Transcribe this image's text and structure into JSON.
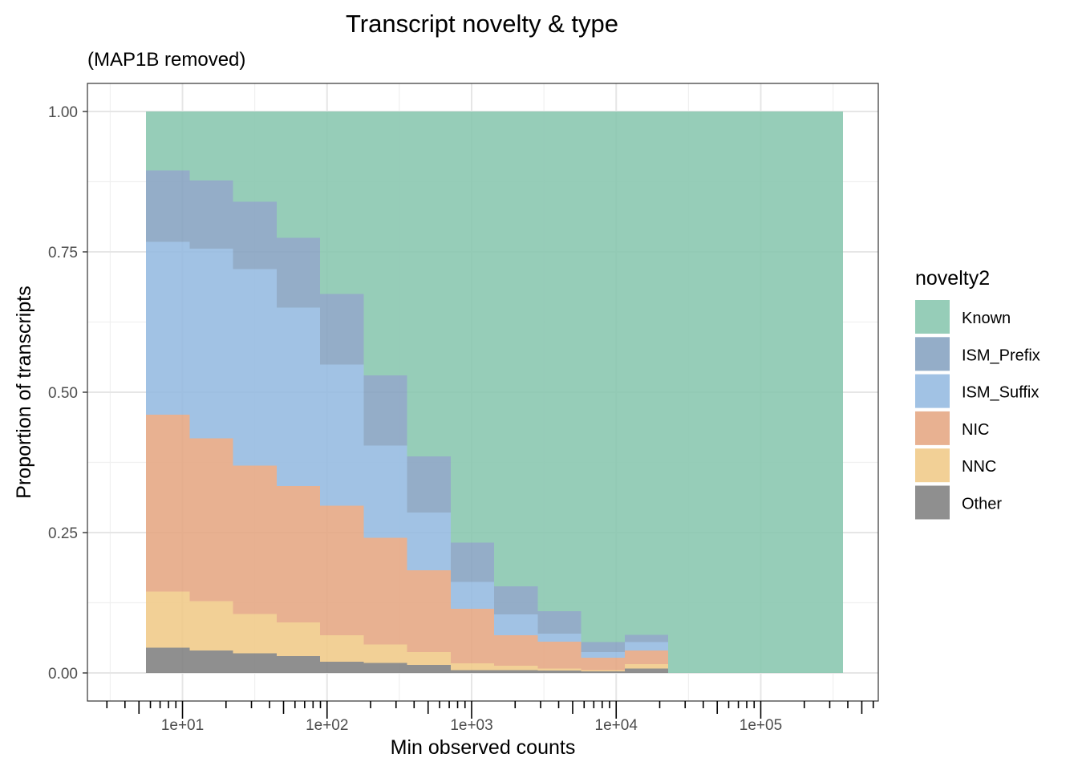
{
  "chart_data": {
    "type": "area",
    "subtype": "stacked-step-histogram",
    "title": "Transcript novelty & type",
    "subtitle": "(MAP1B removed)",
    "xlabel": "Min observed counts",
    "ylabel": "Proportion of transcripts",
    "x_scale": "log10",
    "xlim": [
      2.2,
      650000
    ],
    "ylim": [
      -0.05,
      1.05
    ],
    "x_ticks": [
      {
        "value": 10,
        "label": "1e+01"
      },
      {
        "value": 100,
        "label": "1e+02"
      },
      {
        "value": 1000,
        "label": "1e+03"
      },
      {
        "value": 10000,
        "label": "1e+04"
      },
      {
        "value": 100000,
        "label": "1e+05"
      }
    ],
    "y_ticks": [
      {
        "value": 0,
        "label": "0.00"
      },
      {
        "value": 0.25,
        "label": "0.25"
      },
      {
        "value": 0.5,
        "label": "0.50"
      },
      {
        "value": 0.75,
        "label": "0.75"
      },
      {
        "value": 1,
        "label": "1.00"
      }
    ],
    "bin_edges": [
      5.6,
      11.2,
      22.4,
      44.8,
      89.6,
      179,
      358,
      716,
      1430,
      2860,
      5730,
      11450,
      22900,
      370000
    ],
    "series": [
      {
        "name": "Other",
        "color": "#808080",
        "values": [
          0.045,
          0.04,
          0.035,
          0.03,
          0.02,
          0.018,
          0.014,
          0.005,
          0.005,
          0.004,
          0.003,
          0.008,
          0
        ]
      },
      {
        "name": "NNC",
        "color": "#F0C987",
        "values": [
          0.1,
          0.088,
          0.07,
          0.06,
          0.047,
          0.033,
          0.023,
          0.012,
          0.008,
          0.004,
          0.002,
          0.008,
          0
        ]
      },
      {
        "name": "NIC",
        "color": "#E5A682",
        "values": [
          0.315,
          0.29,
          0.264,
          0.243,
          0.231,
          0.19,
          0.146,
          0.097,
          0.054,
          0.048,
          0.022,
          0.024,
          0
        ]
      },
      {
        "name": "ISM_Suffix",
        "color": "#94B9E0",
        "values": [
          0.308,
          0.338,
          0.35,
          0.318,
          0.251,
          0.164,
          0.103,
          0.048,
          0.037,
          0.014,
          0.01,
          0.015,
          0
        ]
      },
      {
        "name": "ISM_Prefix",
        "color": "#85A2C0",
        "values": [
          0.127,
          0.121,
          0.12,
          0.124,
          0.126,
          0.125,
          0.1,
          0.07,
          0.05,
          0.04,
          0.018,
          0.013,
          0
        ]
      },
      {
        "name": "Known",
        "color": "#87C6AE",
        "values": [
          0.105,
          0.123,
          0.161,
          0.225,
          0.325,
          0.47,
          0.614,
          0.768,
          0.846,
          0.89,
          0.945,
          0.932,
          1.0
        ]
      }
    ],
    "grid": true,
    "legend": {
      "title": "novelty2",
      "position": "right",
      "entries": [
        "Known",
        "ISM_Prefix",
        "ISM_Suffix",
        "NIC",
        "NNC",
        "Other"
      ]
    }
  }
}
